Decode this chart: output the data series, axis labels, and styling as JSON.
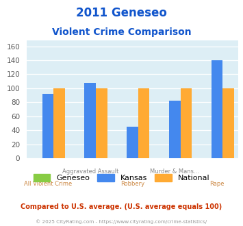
{
  "title_line1": "2011 Geneseo",
  "title_line2": "Violent Crime Comparison",
  "top_labels": [
    "",
    "Aggravated Assault",
    "",
    "Murder & Mans...",
    ""
  ],
  "bottom_labels": [
    "All Violent Crime",
    "",
    "Robbery",
    "",
    "Rape"
  ],
  "geneseo": [
    0,
    0,
    0,
    0,
    0
  ],
  "kansas": [
    92,
    108,
    45,
    82,
    140
  ],
  "national": [
    100,
    100,
    100,
    100,
    100
  ],
  "bar_colors": {
    "geneseo": "#88cc44",
    "kansas": "#4488ee",
    "national": "#ffaa33"
  },
  "ylabel_ticks": [
    0,
    20,
    40,
    60,
    80,
    100,
    120,
    140,
    160
  ],
  "ylim": [
    0,
    168
  ],
  "plot_bg": "#ddeef5",
  "grid_color": "#ffffff",
  "title_color": "#1155cc",
  "top_label_color": "#888888",
  "bot_label_color": "#cc8844",
  "tick_color": "#555555",
  "legend_labels": [
    "Geneseo",
    "Kansas",
    "National"
  ],
  "footer_text1": "Compared to U.S. average. (U.S. average equals 100)",
  "footer_text2": "© 2025 CityRating.com - https://www.cityrating.com/crime-statistics/",
  "footer_color1": "#cc3300",
  "footer_color2": "#999999",
  "bar_width": 0.27,
  "n_groups": 5
}
